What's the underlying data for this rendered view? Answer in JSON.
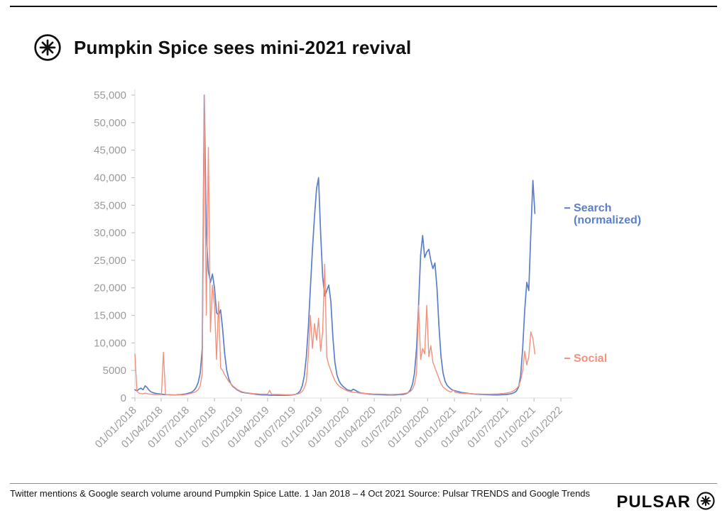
{
  "header": {
    "title": "Pumpkin Spice sees mini-2021 revival"
  },
  "footer": {
    "caption": "Twitter mentions & Google search volume around Pumpkin Spice Latte. 1 Jan 2018 – 4 Oct 2021 Source: Pulsar TRENDS and Google Trends",
    "brand": "PULSAR"
  },
  "icons": {
    "header_logo": "pulsar-logo-icon",
    "brand_logo": "pulsar-asterisk-icon"
  },
  "chart_data": {
    "type": "line",
    "title": "Pumpkin Spice sees mini-2021 revival",
    "xlabel": "",
    "ylabel": "",
    "grid": false,
    "legend_position": "right-annotations",
    "ylim": [
      0,
      55000
    ],
    "xlim_days": [
      0,
      1461
    ],
    "sample_interval_days": 7,
    "x_start_date": "01/01/2018",
    "x_end_date": "04/10/2021",
    "x_tick_days": [
      0,
      90,
      181,
      273,
      365,
      455,
      546,
      638,
      730,
      821,
      912,
      1004,
      1096,
      1186,
      1277,
      1369,
      1461
    ],
    "x_tick_labels": [
      "01/01/2018",
      "01/04/2018",
      "01/07/2018",
      "01/10/2018",
      "01/01/2019",
      "01/04/2019",
      "01/07/2019",
      "01/10/2019",
      "01/01/2020",
      "01/04/2020",
      "01/07/2020",
      "01/10/2020",
      "01/01/2021",
      "01/04/2021",
      "01/07/2021",
      "01/10/2021",
      "01/01/2022"
    ],
    "y_ticks": [
      0,
      5000,
      10000,
      15000,
      20000,
      25000,
      30000,
      35000,
      40000,
      45000,
      50000,
      55000
    ],
    "y_tick_labels": [
      "0",
      "5000",
      "10,000",
      "15,000",
      "20,000",
      "25,000",
      "30,000",
      "35,000",
      "40,000",
      "45,000",
      "50,000",
      "55,000"
    ],
    "series": [
      {
        "name": "Search (normalized)",
        "data_name": "search-line",
        "label_lines": [
          "Search",
          "(normalized)"
        ],
        "label_y_value": 34500,
        "color": "#5c7fc9",
        "width": 1.7,
        "values": [
          1500,
          1300,
          1600,
          1800,
          1500,
          2200,
          1900,
          1400,
          1100,
          950,
          850,
          800,
          750,
          700,
          650,
          600,
          600,
          600,
          550,
          550,
          550,
          600,
          600,
          650,
          700,
          750,
          850,
          950,
          1100,
          1400,
          1900,
          2800,
          4500,
          9000,
          55000,
          30000,
          23000,
          21000,
          22500,
          20000,
          15500,
          15000,
          16000,
          12500,
          8000,
          5000,
          3500,
          2600,
          2100,
          1800,
          1500,
          1300,
          1100,
          1000,
          950,
          900,
          850,
          800,
          750,
          700,
          650,
          600,
          580,
          560,
          550,
          540,
          530,
          520,
          510,
          500,
          500,
          500,
          500,
          500,
          510,
          520,
          540,
          560,
          600,
          700,
          900,
          1300,
          2200,
          4000,
          7500,
          13000,
          20000,
          27000,
          33000,
          38000,
          40000,
          30000,
          22000,
          18500,
          19500,
          20500,
          17500,
          11000,
          6500,
          4200,
          3100,
          2500,
          2100,
          1800,
          1500,
          1400,
          1300,
          1600,
          1400,
          1200,
          1000,
          900,
          850,
          800,
          750,
          700,
          680,
          660,
          640,
          620,
          600,
          590,
          580,
          570,
          560,
          550,
          550,
          560,
          580,
          600,
          620,
          650,
          700,
          800,
          1000,
          1500,
          2500,
          4500,
          9000,
          17000,
          26000,
          29500,
          25500,
          26500,
          27000,
          25000,
          23500,
          24500,
          20000,
          13000,
          7500,
          4500,
          3000,
          2300,
          1900,
          1600,
          1400,
          1300,
          1200,
          1100,
          1000,
          950,
          900,
          850,
          800,
          760,
          730,
          700,
          680,
          660,
          640,
          620,
          600,
          590,
          580,
          570,
          560,
          560,
          570,
          580,
          600,
          620,
          650,
          700,
          750,
          850,
          1000,
          1300,
          2000,
          4000,
          9000,
          16000,
          21000,
          19500,
          30000,
          39500,
          33500
        ]
      },
      {
        "name": "Social",
        "data_name": "social-line",
        "label_lines": [
          "Social"
        ],
        "label_y_value": 7200,
        "color": "#f3917d",
        "width": 1.4,
        "values": [
          8000,
          1200,
          900,
          800,
          750,
          900,
          800,
          700,
          700,
          650,
          650,
          640,
          630,
          620,
          8300,
          620,
          600,
          590,
          580,
          570,
          560,
          560,
          570,
          580,
          600,
          650,
          700,
          800,
          900,
          1000,
          1200,
          1500,
          2200,
          4500,
          55000,
          15000,
          45500,
          12000,
          20500,
          17000,
          7000,
          17500,
          5500,
          5000,
          4200,
          3600,
          3000,
          2600,
          2200,
          1900,
          1600,
          1400,
          1200,
          1100,
          1000,
          950,
          900,
          850,
          800,
          780,
          760,
          740,
          720,
          700,
          690,
          680,
          1400,
          670,
          660,
          650,
          640,
          630,
          620,
          610,
          600,
          600,
          610,
          620,
          640,
          680,
          750,
          900,
          1200,
          1800,
          3000,
          8000,
          15000,
          9000,
          13500,
          10500,
          14500,
          8500,
          12000,
          24300,
          7500,
          6000,
          5000,
          4000,
          3200,
          2600,
          2200,
          1900,
          1700,
          1500,
          1300,
          1200,
          1100,
          1050,
          1000,
          950,
          900,
          870,
          850,
          830,
          800,
          780,
          760,
          740,
          730,
          720,
          710,
          700,
          690,
          680,
          670,
          660,
          660,
          670,
          680,
          700,
          730,
          770,
          820,
          900,
          1000,
          1200,
          1600,
          2500,
          4500,
          16800,
          7000,
          9000,
          8000,
          16800,
          7500,
          9500,
          6500,
          5500,
          4500,
          3500,
          2600,
          2000,
          1700,
          1400,
          1200,
          1100,
          1500,
          1000,
          950,
          900,
          870,
          850,
          830,
          810,
          800,
          780,
          760,
          750,
          740,
          730,
          720,
          710,
          700,
          700,
          700,
          710,
          720,
          730,
          750,
          780,
          810,
          850,
          900,
          960,
          1050,
          1200,
          1400,
          1700,
          2200,
          3200,
          5000,
          8500,
          6000,
          7500,
          12000,
          10800,
          8000
        ]
      }
    ]
  }
}
